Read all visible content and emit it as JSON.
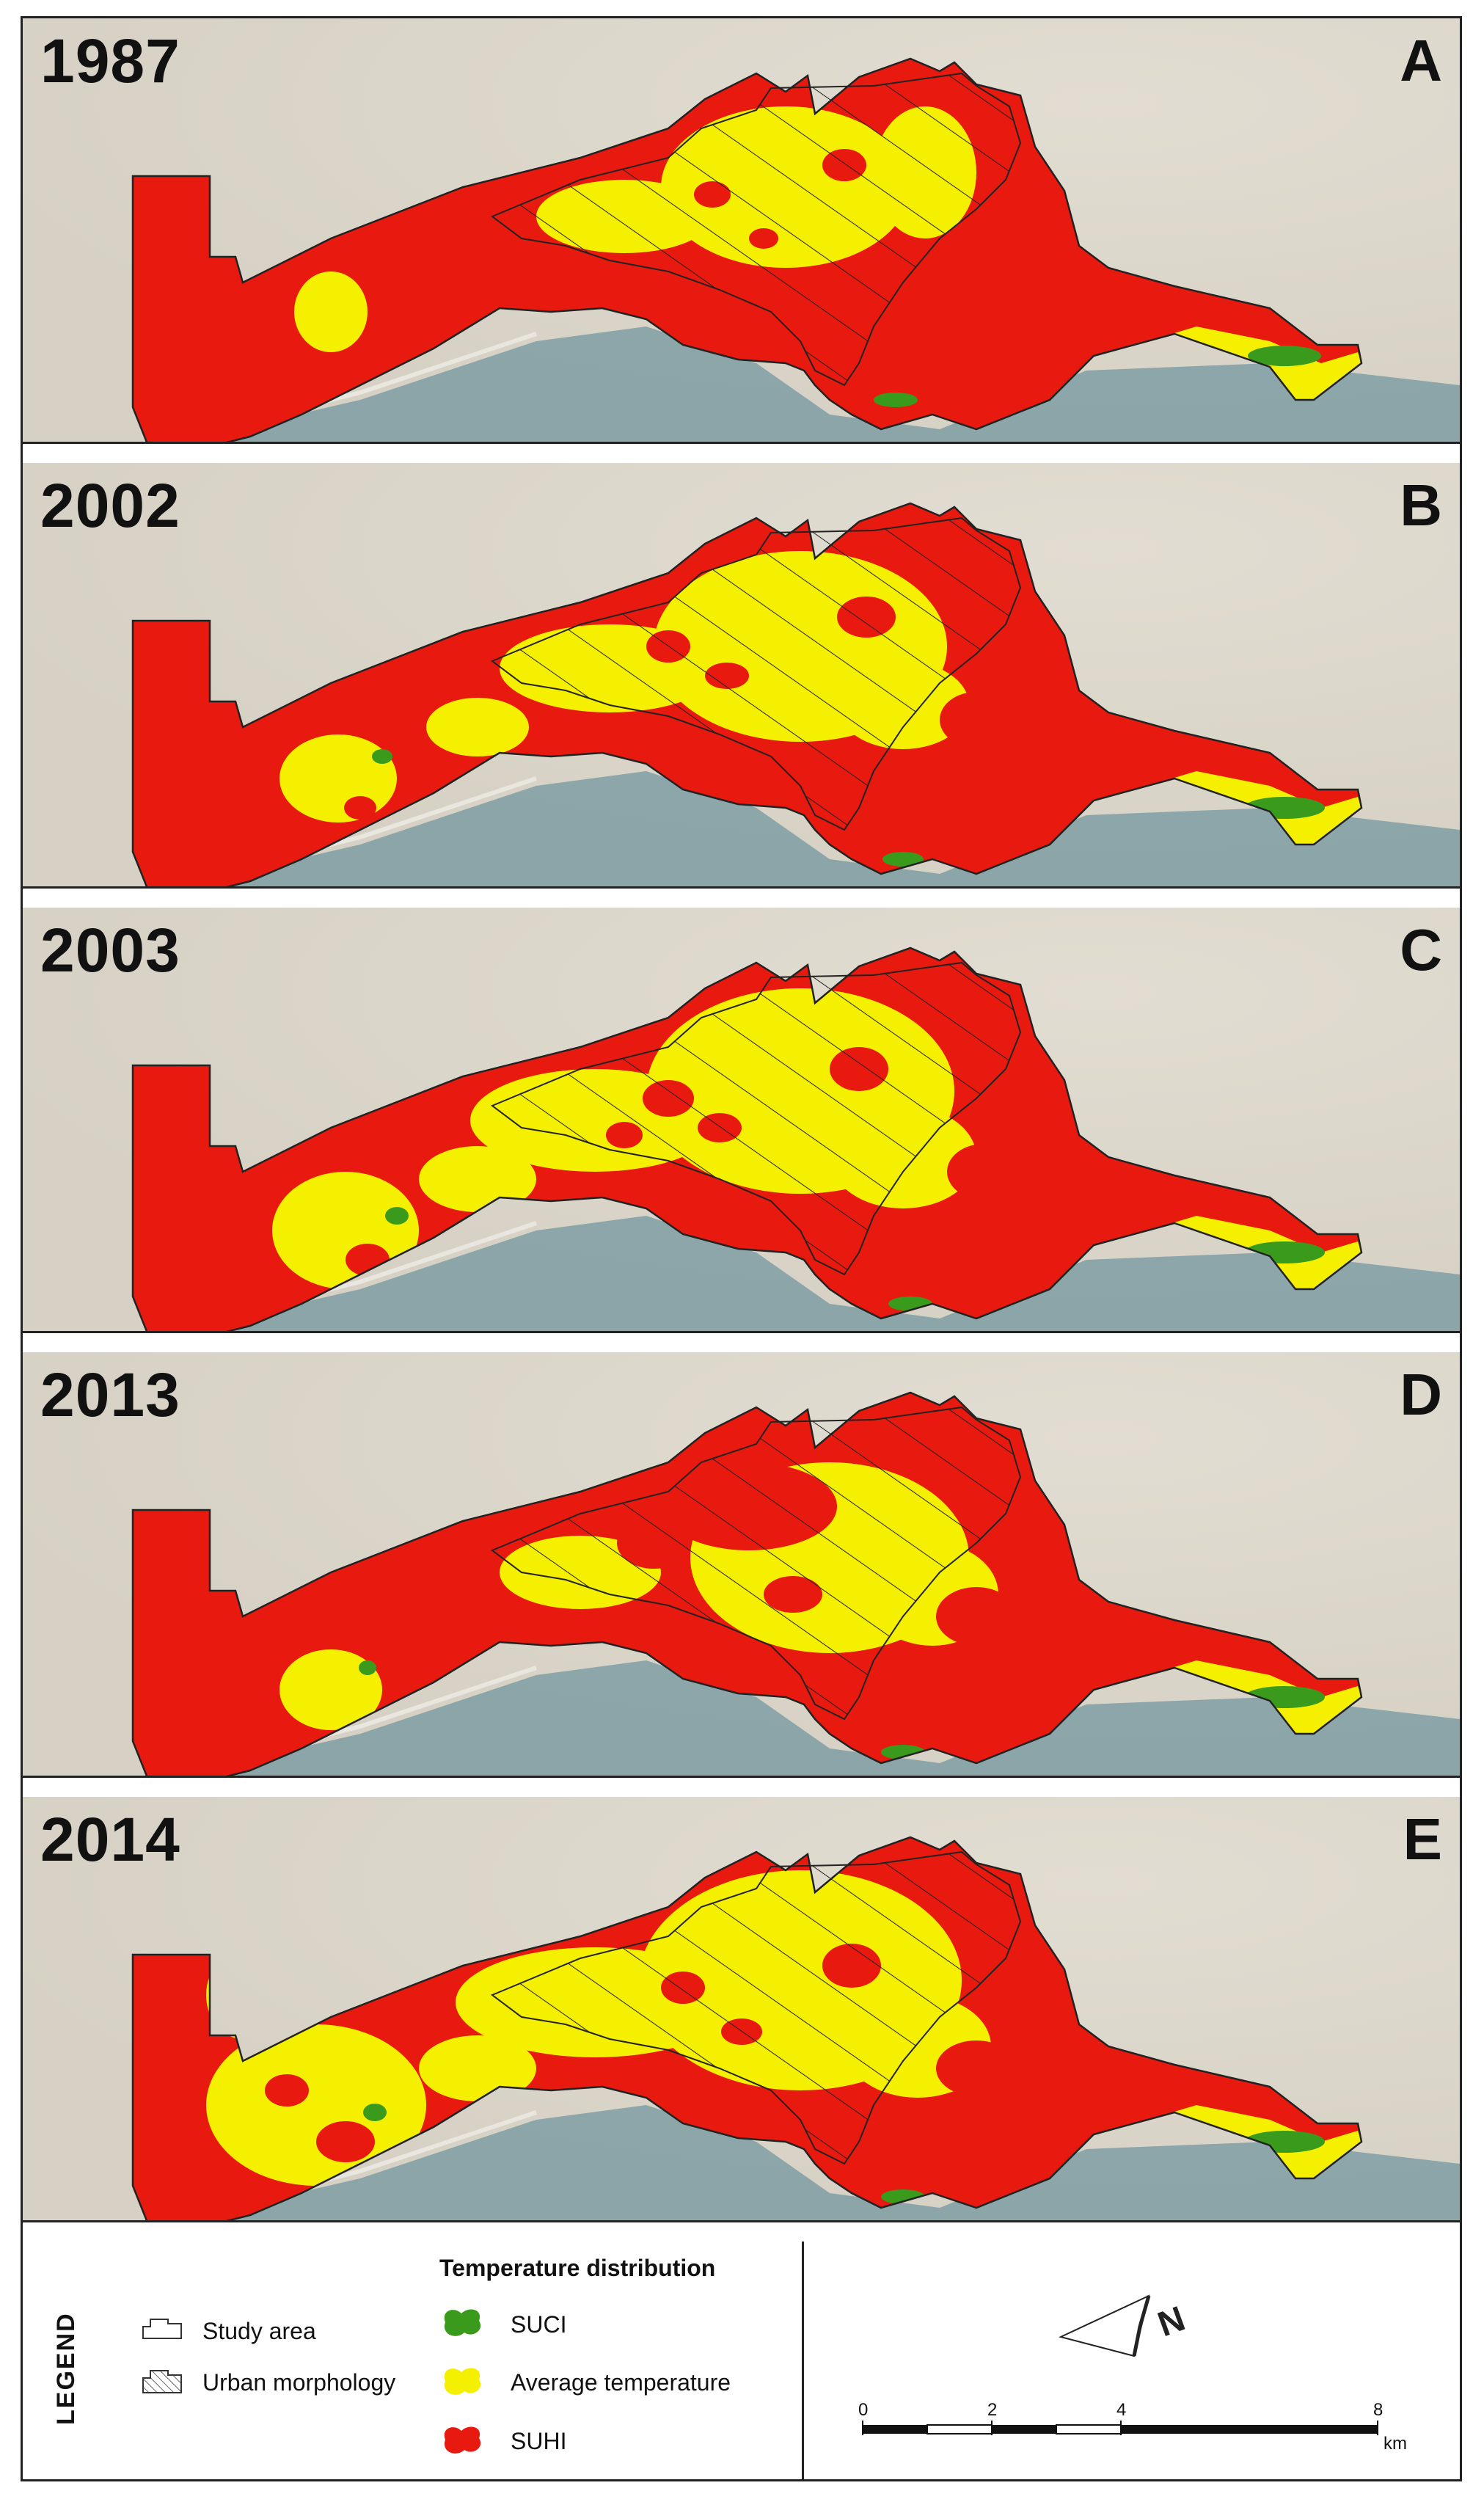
{
  "panels": [
    {
      "year": "1987",
      "letter": "A",
      "variant": 0
    },
    {
      "year": "2002",
      "letter": "B",
      "variant": 1
    },
    {
      "year": "2003",
      "letter": "C",
      "variant": 2
    },
    {
      "year": "2013",
      "letter": "D",
      "variant": 3
    },
    {
      "year": "2014",
      "letter": "E",
      "variant": 4
    }
  ],
  "legend": {
    "title": "LEGEND",
    "study_area": "Study area",
    "urban_morphology": "Urban morphology",
    "temperature_heading": "Temperature distribution",
    "suci": "SUCI",
    "average": "Average temperature",
    "suhi": "SUHI"
  },
  "colors": {
    "suhi": "#e8190f",
    "average": "#f4f000",
    "suci": "#3a9a1c",
    "sea": "#7f9ea3",
    "land": "#d6d1c4"
  },
  "north_label": "N",
  "scale": {
    "ticks": [
      "0",
      "2",
      "4",
      "8"
    ],
    "unit": "km"
  }
}
